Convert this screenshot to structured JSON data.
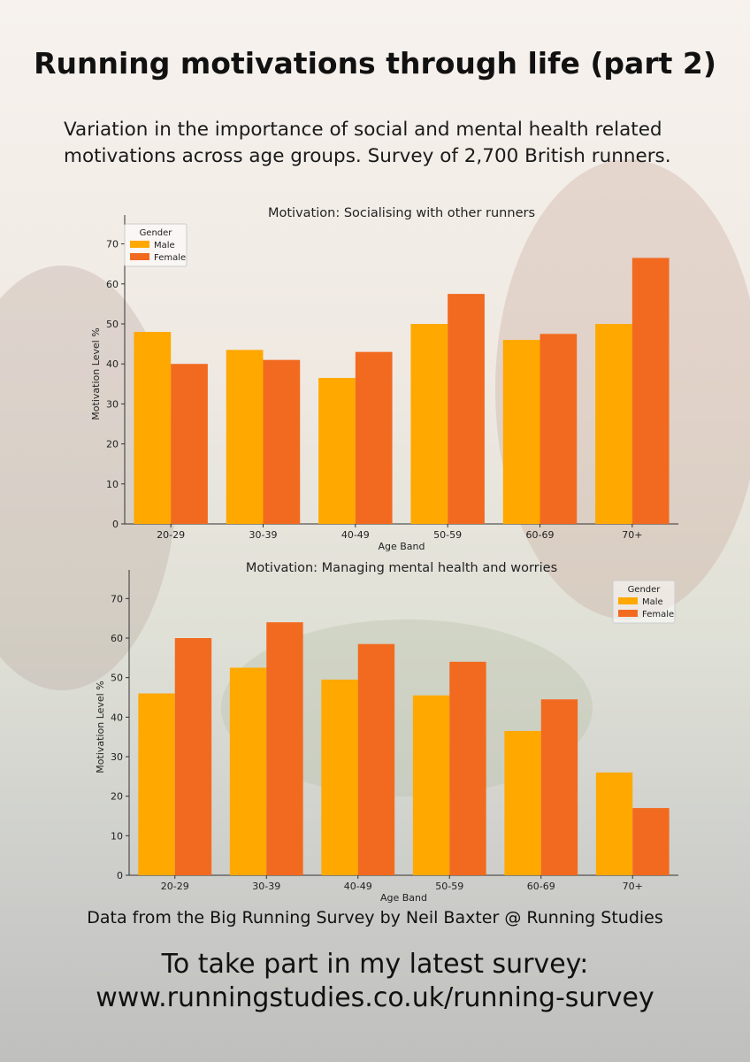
{
  "page": {
    "title": "Running motivations through life (part 2)",
    "subtitle": "Variation in the importance of social and mental health related motivations across age groups. Survey of 2,700 British runners.",
    "source": "Data from the Big Running Survey by Neil Baxter @ Running Studies",
    "cta_line1": "To take part in my latest survey:",
    "cta_line2": "www.runningstudies.co.uk/running-survey"
  },
  "colors": {
    "male": "#FFA800",
    "female": "#F26A1F"
  },
  "chart_data": [
    {
      "type": "bar",
      "title": "Motivation: Socialising with other runners",
      "xlabel": "Age Band",
      "ylabel": "Motivation Level %",
      "ylim": [
        0,
        75
      ],
      "yticks": [
        0,
        10,
        20,
        30,
        40,
        50,
        60,
        70
      ],
      "categories": [
        "20-29",
        "30-39",
        "40-49",
        "50-59",
        "60-69",
        "70+"
      ],
      "legend": {
        "title": "Gender",
        "position": "top-left"
      },
      "series": [
        {
          "name": "Male",
          "values": [
            48,
            43.5,
            36.5,
            50,
            46,
            50
          ]
        },
        {
          "name": "Female",
          "values": [
            40,
            41,
            43,
            57.5,
            47.5,
            66.5
          ]
        }
      ],
      "grid": false
    },
    {
      "type": "bar",
      "title": "Motivation: Managing mental health and worries",
      "xlabel": "Age Band",
      "ylabel": "Motivation Level %",
      "ylim": [
        0,
        75
      ],
      "yticks": [
        0,
        10,
        20,
        30,
        40,
        50,
        60,
        70
      ],
      "categories": [
        "20-29",
        "30-39",
        "40-49",
        "50-59",
        "60-69",
        "70+"
      ],
      "legend": {
        "title": "Gender",
        "position": "top-right"
      },
      "series": [
        {
          "name": "Male",
          "values": [
            46,
            52.5,
            49.5,
            45.5,
            36.5,
            26
          ]
        },
        {
          "name": "Female",
          "values": [
            60,
            64,
            58.5,
            54,
            44.5,
            17
          ]
        }
      ],
      "grid": false
    }
  ]
}
